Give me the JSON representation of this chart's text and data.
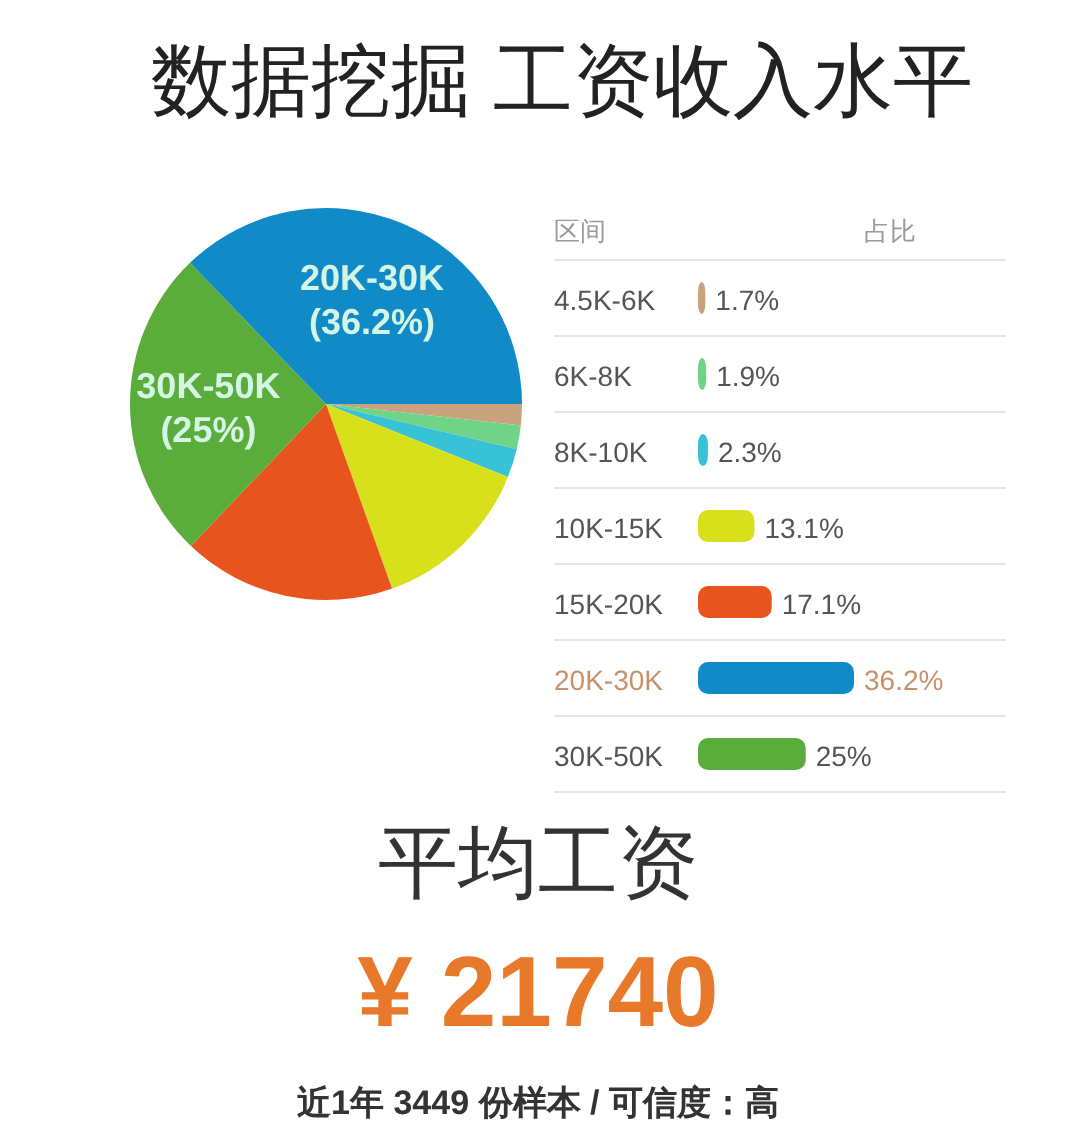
{
  "chart_data": [
    {
      "type": "pie",
      "title": "数据挖掘 工资收入水平",
      "categories": [
        null,
        null,
        null,
        null,
        null,
        "30K-50K",
        "20K-30K"
      ],
      "values": [
        1.7,
        1.9,
        2.3,
        13.1,
        17.1,
        25,
        36.2
      ],
      "colors": [
        "#c9a37e",
        "#6fd486",
        "#37c2d6",
        "#d8e01c",
        "#e8541e",
        "#5aad3b",
        "#118bc8"
      ],
      "value_labels": [
        null,
        null,
        null,
        null,
        null,
        "(25%)",
        "(36.2%)"
      ]
    },
    {
      "type": "bar",
      "orientation": "horizontal",
      "ylabel": "区间",
      "xlabel": "占比",
      "categories": [
        "4.5K-6K",
        "6K-8K",
        "8K-10K",
        "10K-15K",
        "15K-20K",
        "20K-30K",
        "30K-50K"
      ],
      "values": [
        1.7,
        1.9,
        2.3,
        13.1,
        17.1,
        36.2,
        25
      ],
      "colors": [
        "#c9a37e",
        "#6fd486",
        "#37c2d6",
        "#d8e01c",
        "#e8541e",
        "#118bc8",
        "#5aad3b"
      ],
      "value_labels": [
        "1.7%",
        "1.9%",
        "2.3%",
        "13.1%",
        "17.1%",
        "36.2%",
        "25%"
      ],
      "grid": "y"
    },
    {
      "type": "other",
      "title": "平均工资",
      "annotations": [
        "¥ 21740",
        "近1年 3449 份样本 / 可信度：高"
      ]
    }
  ]
}
